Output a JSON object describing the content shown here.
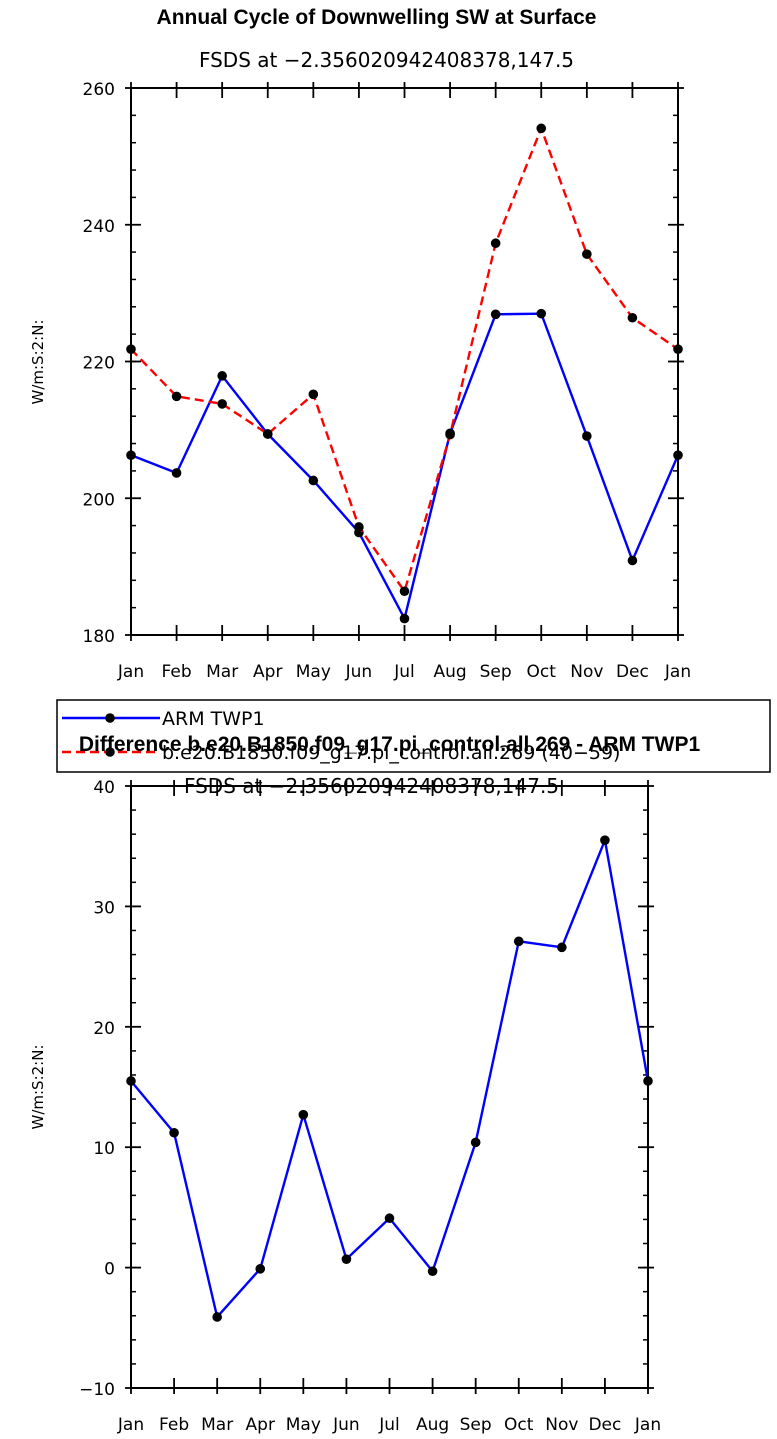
{
  "chart_data": [
    {
      "type": "line",
      "title": "Annual Cycle of Downwelling SW at Surface",
      "subtitle": "FSDS at −2.356020942408378,147.5",
      "ylabel": "W/m:S:2:N:",
      "xlabel": "",
      "categories": [
        "Jan",
        "Feb",
        "Mar",
        "Apr",
        "May",
        "Jun",
        "Jul",
        "Aug",
        "Sep",
        "Oct",
        "Nov",
        "Dec",
        "Jan"
      ],
      "ylim": [
        180,
        260
      ],
      "yticks": [
        "180",
        "200",
        "220",
        "240",
        "260"
      ],
      "grid": false,
      "legend_position": "bottom",
      "series": [
        {
          "name": "ARM TWP1",
          "color": "#0000ff",
          "dash": "solid",
          "values": [
            206.3,
            203.7,
            217.9,
            209.4,
            202.6,
            195.0,
            182.4,
            209.5,
            226.9,
            227.0,
            209.1,
            190.9,
            206.3
          ]
        },
        {
          "name": "b.e20.B1850.f09_g17.pi_control.all.269 (40−59)",
          "color": "#ff0000",
          "dash": "dashed",
          "values": [
            221.8,
            214.9,
            213.8,
            209.4,
            215.2,
            195.8,
            186.4,
            209.3,
            237.3,
            254.1,
            235.7,
            226.4,
            221.8
          ]
        }
      ]
    },
    {
      "type": "line",
      "title": "Difference b.e20.B1850.f09_g17.pi_control.all.269 - ARM TWP1",
      "subtitle": "FSDS at −2.356020942408378,147.5",
      "ylabel": "W/m:S:2:N:",
      "xlabel": "",
      "categories": [
        "Jan",
        "Feb",
        "Mar",
        "Apr",
        "May",
        "Jun",
        "Jul",
        "Aug",
        "Sep",
        "Oct",
        "Nov",
        "Dec",
        "Jan"
      ],
      "ylim": [
        -10,
        40
      ],
      "yticks": [
        "−10",
        "0",
        "10",
        "20",
        "30",
        "40"
      ],
      "grid": false,
      "series": [
        {
          "name": "",
          "color": "#0000ff",
          "dash": "solid",
          "values": [
            15.5,
            11.2,
            -4.1,
            -0.1,
            12.7,
            0.7,
            4.1,
            -0.3,
            10.4,
            27.1,
            26.6,
            35.5,
            15.5
          ]
        }
      ]
    }
  ]
}
